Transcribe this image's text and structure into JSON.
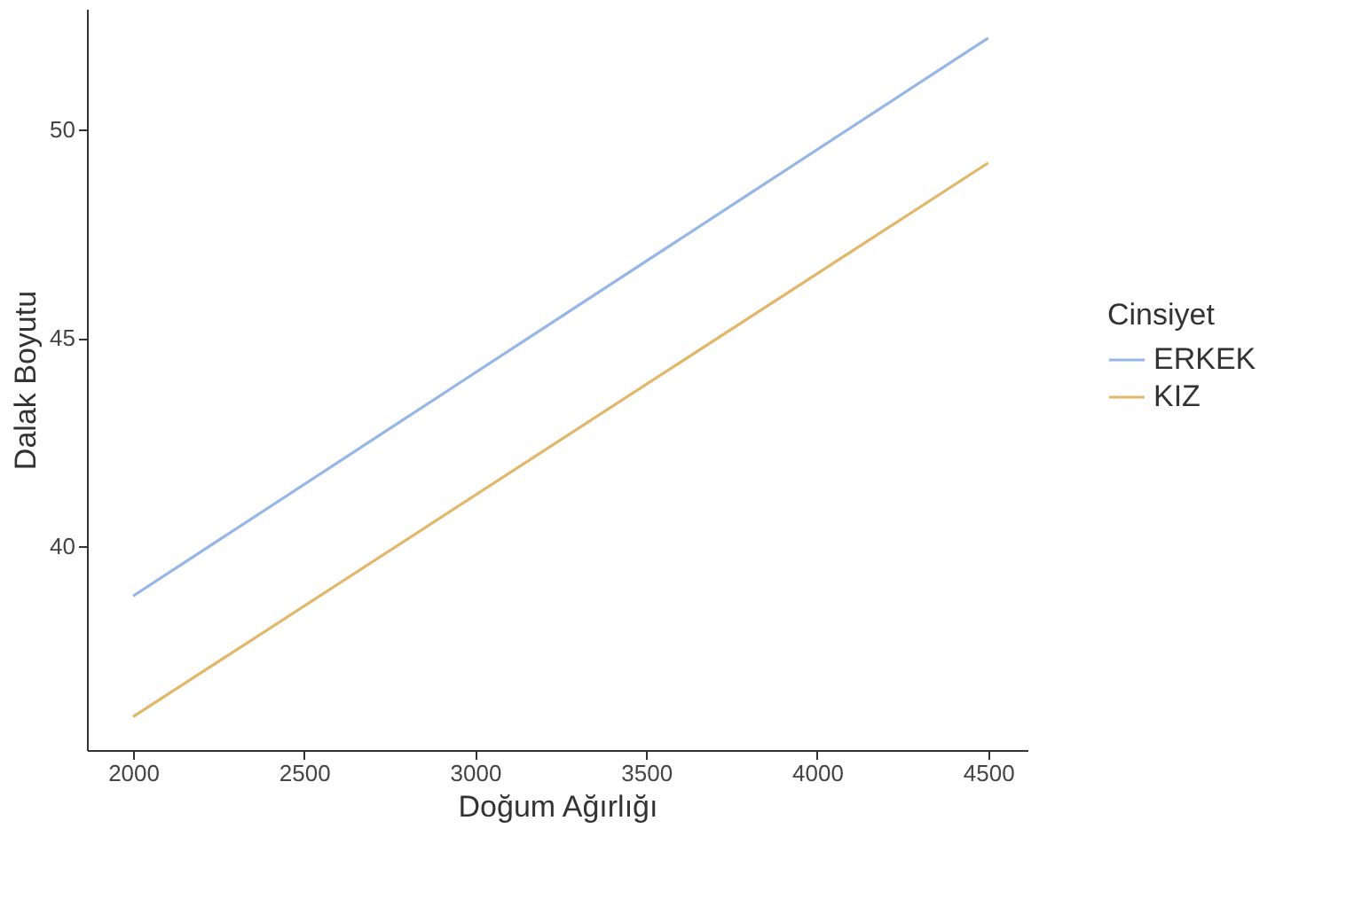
{
  "chart_data": {
    "type": "line",
    "xlabel": "Doğum Ağırlığı",
    "ylabel": "Dalak Boyutu",
    "legend_title": "Cinsiyet",
    "x": [
      2000,
      4500
    ],
    "series": [
      {
        "name": "ERKEK",
        "color": "#97b6e8",
        "values": [
          38.8,
          52.2
        ]
      },
      {
        "name": "KIZ",
        "color": "#e3b769",
        "values": [
          35.9,
          49.2
        ]
      }
    ],
    "xlim": [
      1865,
      4615
    ],
    "ylim": [
      35.1,
      52.9
    ],
    "xticks": [
      2000,
      2500,
      3000,
      3500,
      4000,
      4500
    ],
    "yticks": [
      40,
      45,
      50
    ],
    "grid": false,
    "legend": "right",
    "line_style": "solid",
    "marker": "none"
  }
}
